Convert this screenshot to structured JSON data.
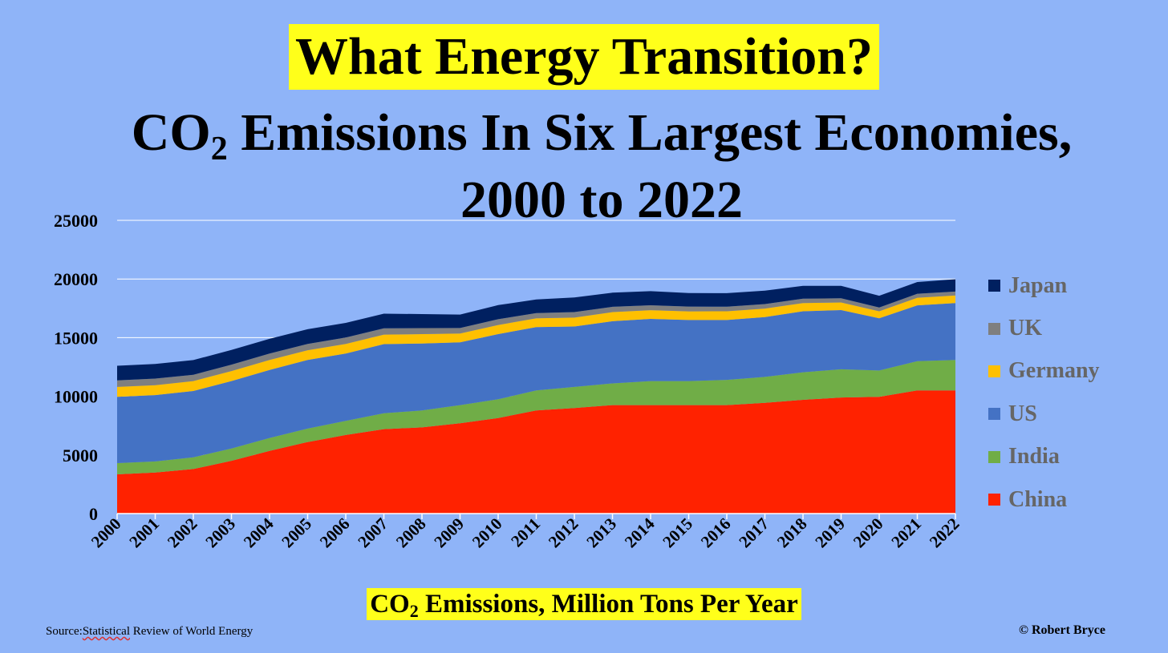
{
  "header": {
    "headline": "What Energy Transition?",
    "subtitle_line1_prefix": "CO",
    "subtitle_line1_sub": "2",
    "subtitle_line1_rest": " Emissions In Six Largest Economies,",
    "subtitle_line2": "2000 to 2022"
  },
  "caption": {
    "prefix": "CO",
    "sub": "2",
    "rest": " Emissions, Million Tons Per Year"
  },
  "source": {
    "label": "Source:",
    "word": "Statistical",
    "rest": " Review of World Energy"
  },
  "copyright": "© Robert Bryce",
  "chart_data": {
    "type": "area",
    "stacked": true,
    "title": "CO2 Emissions In Six Largest Economies, 2000 to 2022",
    "xlabel": "CO2 Emissions, Million Tons Per Year",
    "ylabel": "",
    "ylim": [
      0,
      25000
    ],
    "yticks": [
      "0",
      "5000",
      "10000",
      "15000",
      "20000",
      "25000"
    ],
    "grid": true,
    "legend_position": "right",
    "categories": [
      "2000",
      "2001",
      "2002",
      "2003",
      "2004",
      "2005",
      "2006",
      "2007",
      "2008",
      "2009",
      "2010",
      "2011",
      "2012",
      "2013",
      "2014",
      "2015",
      "2016",
      "2017",
      "2018",
      "2019",
      "2020",
      "2021",
      "2022"
    ],
    "series": [
      {
        "name": "China",
        "color": "#ff2200",
        "values": [
          3350,
          3500,
          3800,
          4500,
          5350,
          6100,
          6700,
          7200,
          7350,
          7700,
          8150,
          8800,
          9000,
          9250,
          9250,
          9250,
          9250,
          9450,
          9700,
          9900,
          9950,
          10500,
          10500
        ]
      },
      {
        "name": "India",
        "color": "#70ad47",
        "values": [
          950,
          950,
          1000,
          1050,
          1100,
          1150,
          1200,
          1350,
          1450,
          1550,
          1600,
          1700,
          1800,
          1850,
          2050,
          2050,
          2150,
          2200,
          2350,
          2400,
          2250,
          2500,
          2600
        ]
      },
      {
        "name": "US",
        "color": "#4472c4",
        "values": [
          5650,
          5650,
          5650,
          5750,
          5800,
          5850,
          5750,
          5900,
          5700,
          5350,
          5550,
          5400,
          5150,
          5300,
          5300,
          5200,
          5100,
          5100,
          5200,
          5050,
          4450,
          4750,
          4850
        ]
      },
      {
        "name": "Germany",
        "color": "#ffc000",
        "values": [
          850,
          850,
          850,
          850,
          850,
          830,
          820,
          810,
          800,
          750,
          780,
          750,
          760,
          780,
          740,
          740,
          750,
          730,
          700,
          650,
          600,
          650,
          650
        ]
      },
      {
        "name": "UK",
        "color": "#7f7f7f",
        "values": [
          550,
          560,
          540,
          550,
          550,
          540,
          540,
          530,
          510,
          470,
          490,
          450,
          470,
          450,
          420,
          410,
          390,
          380,
          370,
          360,
          320,
          340,
          330
        ]
      },
      {
        "name": "Japan",
        "color": "#002060",
        "values": [
          1250,
          1250,
          1250,
          1250,
          1250,
          1250,
          1250,
          1250,
          1200,
          1150,
          1200,
          1150,
          1250,
          1200,
          1200,
          1150,
          1150,
          1150,
          1100,
          1050,
          1000,
          1000,
          1050
        ]
      }
    ]
  }
}
